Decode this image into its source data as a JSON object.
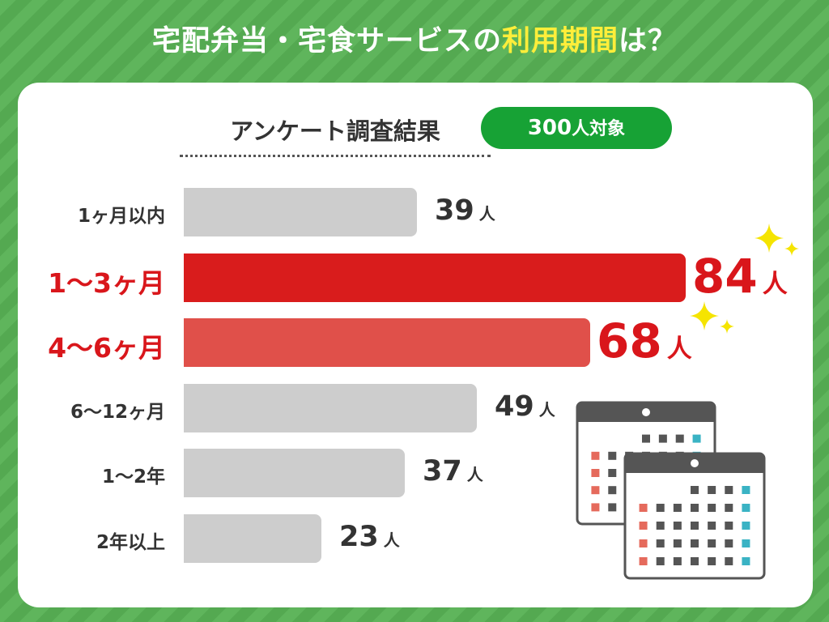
{
  "title": {
    "prefix": "宅配弁当・宅食サービスの",
    "highlight": "利用期間",
    "suffix": "は？"
  },
  "survey": {
    "title": "アンケート調査結果",
    "badge_number": "300",
    "badge_suffix": "人対象"
  },
  "colors": {
    "background": "#5aaf57",
    "card": "#ffffff",
    "bar_default": "#cdcdcd",
    "bar_top": "#d91c1c",
    "bar_second": "#e0504a",
    "accent_label": "#d9161b",
    "title_highlight": "#ffee3a",
    "badge": "#17a235",
    "sparkle": "#f5e400"
  },
  "icons": [
    "sparkle-icon",
    "calendar-icon"
  ],
  "chart_data": {
    "type": "bar",
    "orientation": "horizontal",
    "categories": [
      "1ヶ月以内",
      "1〜3ヶ月",
      "4〜6ヶ月",
      "6〜12ヶ月",
      "1〜2年",
      "2年以上"
    ],
    "values": [
      39,
      84,
      68,
      49,
      37,
      23
    ],
    "value_labels": [
      "39",
      "84",
      "68",
      "49",
      "37",
      "23"
    ],
    "unit": "人",
    "highlighted": [
      false,
      true,
      true,
      false,
      false,
      false
    ],
    "xlim": [
      0,
      84
    ],
    "grid": false,
    "legend": "none"
  }
}
